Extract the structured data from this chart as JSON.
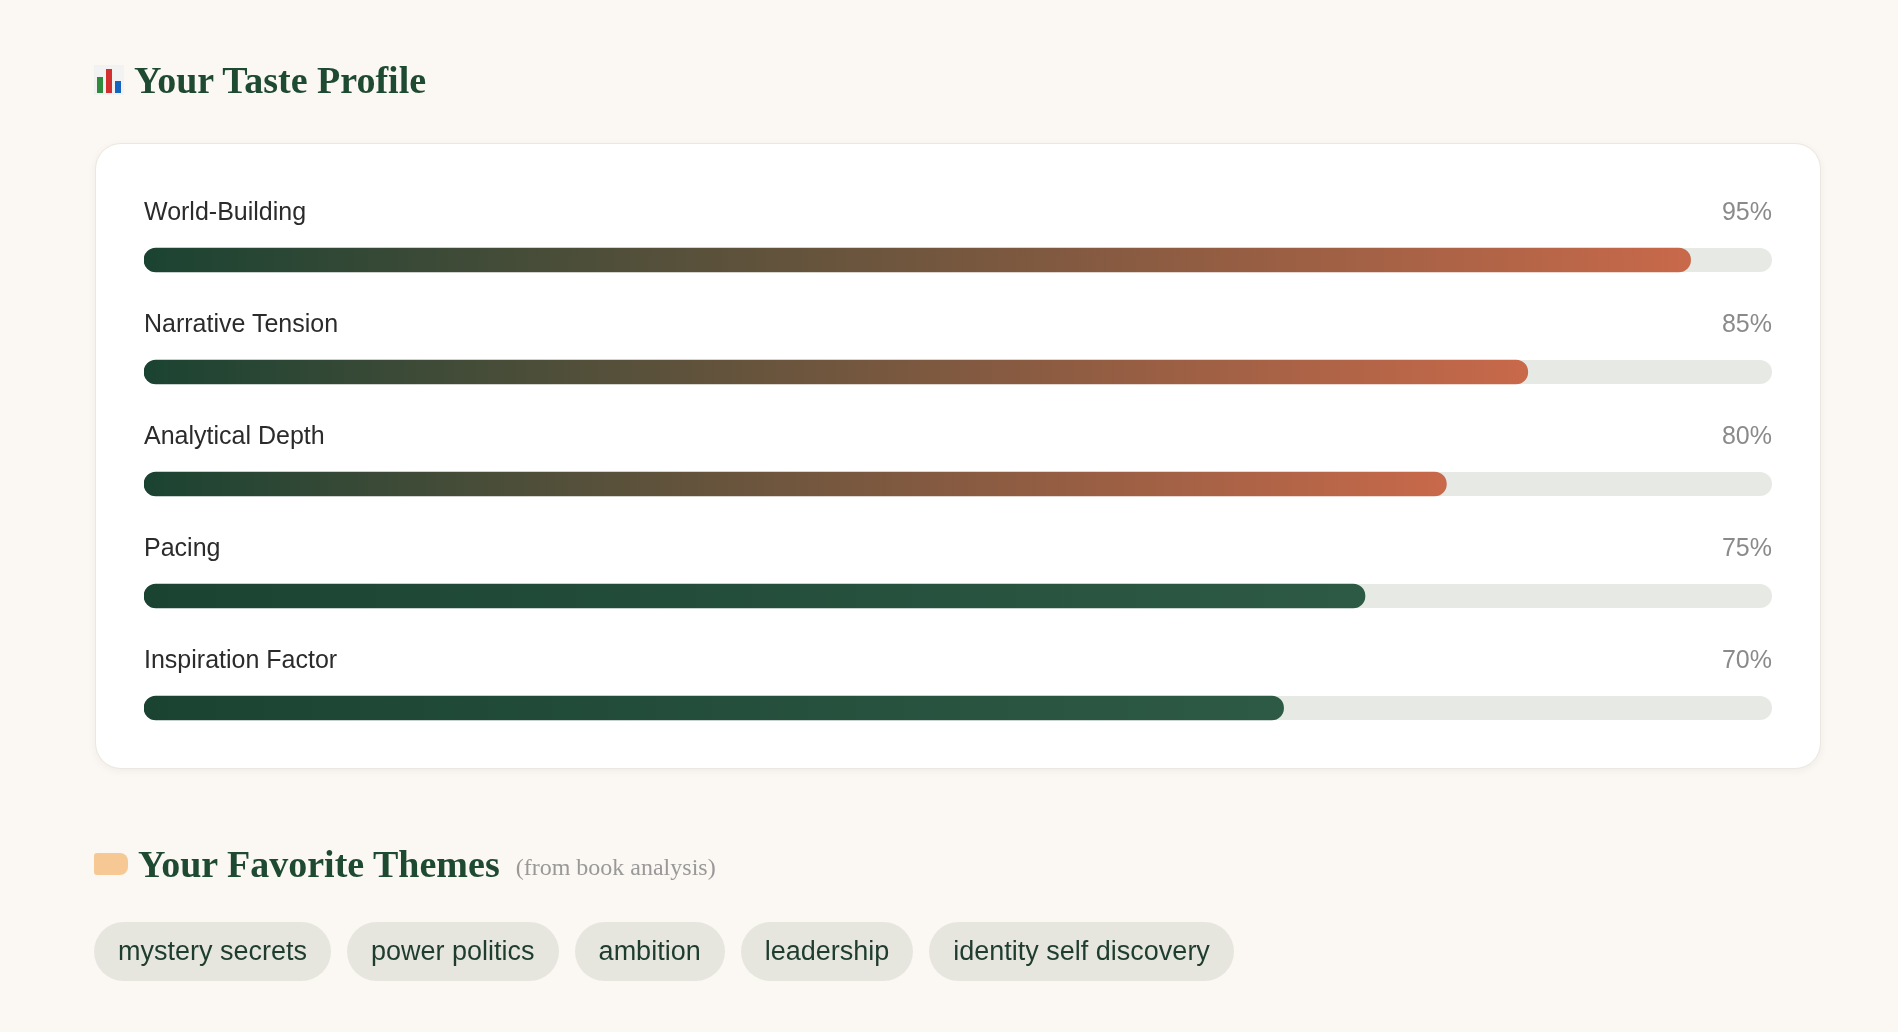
{
  "chart_data": [
    {
      "type": "bar",
      "orientation": "horizontal",
      "title": "Your Taste Profile",
      "categories": [
        "World-Building",
        "Narrative Tension",
        "Analytical Depth",
        "Pacing",
        "Inspiration Factor"
      ],
      "values": [
        95,
        85,
        80,
        75,
        70
      ],
      "value_labels": [
        "95%",
        "85%",
        "80%",
        "75%",
        "70%"
      ],
      "color": "#1b4332",
      "colors": [
        "#c8694a",
        "#c8694a",
        "#c8694a",
        "#2d5a45",
        "#2d5a45"
      ],
      "xlim": [
        0,
        100
      ],
      "tick_labels": false
    },
    {
      "type": "other",
      "title": "Your Favorite Themes",
      "subtitle": "(from book analysis)",
      "annotations": [
        "mystery secrets",
        "power politics",
        "ambition",
        "leadership",
        "identity self discovery"
      ]
    }
  ]
}
